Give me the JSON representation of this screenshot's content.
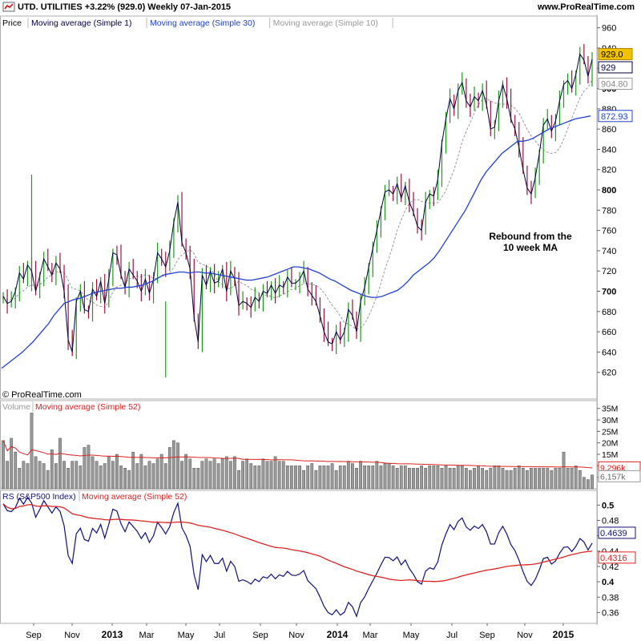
{
  "header": {
    "title_line": "UTD. UTILITIES   +3.22% (929.0)   Weekly   07-Jan-2015",
    "site": "www.ProRealTime.com"
  },
  "copyright": "© ProRealTime.com",
  "colors": {
    "price_up": "#1a9c1a",
    "price_down": "#a0103c",
    "sma1": "#000040",
    "sma30": "#2040d0",
    "sma10": "#999999",
    "volume_bar": "#9a9a9a",
    "volume_ma": "#dd2222",
    "rs_line": "#10107a",
    "rs_ma": "#dd2222",
    "badge_yellow": "#f2c200"
  },
  "chart_data": [
    {
      "type": "candlestick",
      "panel": "price",
      "legend": [
        "Price",
        "Moving average (Simple 1)",
        "Moving average (Simple 30)",
        "Moving average (Simple 10)"
      ],
      "annotation": "Rebound from the\n10 week MA",
      "ylim": [
        600,
        970
      ],
      "yticks": [
        620,
        640,
        660,
        680,
        700,
        720,
        740,
        760,
        780,
        800,
        820,
        840,
        860,
        880,
        900,
        920,
        940,
        960
      ],
      "last_values": {
        "price": "929.0",
        "sma1": "929",
        "sma10": "904.80",
        "sma30": "872.93"
      },
      "price_closes": [
        695,
        688,
        690,
        700,
        718,
        712,
        726,
        720,
        700,
        715,
        732,
        724,
        716,
        728,
        722,
        700,
        652,
        640,
        690,
        700,
        682,
        680,
        702,
        695,
        710,
        688,
        712,
        738,
        736,
        716,
        704,
        722,
        716,
        710,
        700,
        712,
        698,
        712,
        738,
        732,
        724,
        740,
        768,
        788,
        748,
        738,
        722,
        674,
        650,
        716,
        706,
        720,
        708,
        710,
        722,
        700,
        720,
        712,
        686,
        690,
        688,
        684,
        694,
        690,
        700,
        698,
        706,
        698,
        706,
        704,
        714,
        708,
        708,
        712,
        720,
        702,
        696,
        690,
        676,
        660,
        650,
        648,
        660,
        652,
        660,
        682,
        676,
        660,
        690,
        704,
        724,
        742,
        760,
        780,
        798,
        800,
        796,
        806,
        792,
        804,
        788,
        778,
        764,
        760,
        788,
        796,
        794,
        810,
        846,
        870,
        890,
        880,
        898,
        906,
        888,
        882,
        892,
        888,
        898,
        884,
        860,
        862,
        888,
        904,
        890,
        870,
        860,
        842,
        820,
        802,
        796,
        812,
        836,
        864,
        870,
        858,
        868,
        888,
        904,
        908,
        900,
        914,
        934,
        928,
        912,
        929
      ],
      "sma30_values": [
        624,
        628,
        632,
        636,
        640,
        645,
        650,
        656,
        662,
        668,
        676,
        682,
        688,
        690,
        692,
        693,
        695,
        697,
        699,
        700,
        701,
        702,
        703,
        703,
        704,
        704,
        705,
        706,
        708,
        710,
        713,
        716,
        717,
        718,
        719,
        719,
        718,
        719,
        719,
        718,
        718,
        717,
        716,
        715,
        714,
        713,
        712,
        711,
        711,
        712,
        713,
        714,
        716,
        718,
        720,
        722,
        724,
        724,
        723,
        722,
        720,
        718,
        715,
        712,
        710,
        707,
        704,
        701,
        699,
        697,
        695,
        694,
        694,
        695,
        697,
        699,
        701,
        705,
        710,
        716,
        720,
        724,
        728,
        733,
        740,
        748,
        756,
        764,
        772,
        780,
        790,
        800,
        810,
        818,
        824,
        830,
        836,
        840,
        844,
        848,
        848,
        849,
        851,
        854,
        857,
        860,
        862,
        864,
        866,
        868,
        870,
        871,
        872,
        873
      ]
    },
    {
      "type": "bar",
      "panel": "volume",
      "legend": [
        "Volume",
        "Moving average (Simple 52)"
      ],
      "yticks": [
        "5M",
        "10M",
        "15M",
        "20M",
        "25M",
        "30M",
        "35M"
      ],
      "ylim_millions": [
        0,
        37
      ],
      "last_values": {
        "volume": "6,157k",
        "volume_ma": "9,296k"
      },
      "volume_millions": [
        21,
        12,
        22,
        16,
        9,
        12,
        11,
        33,
        14,
        12,
        11,
        8,
        17,
        11,
        22,
        12,
        9,
        12,
        12,
        10,
        18,
        19,
        14,
        12,
        10,
        11,
        14,
        12,
        15,
        10,
        9,
        8,
        16,
        11,
        15,
        10,
        12,
        11,
        13,
        15,
        11,
        18,
        21,
        20,
        12,
        15,
        13,
        9,
        9,
        12,
        13,
        12,
        13,
        11,
        13,
        14,
        12,
        14,
        8,
        12,
        13,
        11,
        10,
        10,
        13,
        12,
        12,
        14,
        12,
        12,
        10,
        10,
        10,
        10,
        8,
        10,
        11,
        8,
        10,
        10,
        10,
        11,
        8,
        10,
        10,
        12,
        11,
        9,
        12,
        10,
        10,
        10,
        12,
        10,
        11,
        11,
        10,
        9,
        10,
        10,
        9,
        9,
        9,
        10,
        9,
        10,
        10,
        10,
        9,
        10,
        9,
        9,
        10,
        10,
        9,
        8,
        9,
        10,
        9,
        8,
        9,
        10,
        10,
        9,
        8,
        8,
        9,
        10,
        9,
        8,
        9,
        9,
        9,
        9,
        9,
        8,
        9,
        9,
        16,
        9,
        9,
        10,
        8,
        5,
        4,
        6
      ]
    },
    {
      "type": "line",
      "panel": "rs",
      "legend": [
        "RS (S&P500 Index)",
        "Moving average (Simple 52)"
      ],
      "yticks": [
        0.36,
        0.38,
        0.4,
        0.42,
        0.44,
        0.46,
        0.48,
        0.5
      ],
      "ylim": [
        0.35,
        0.515
      ],
      "last_values": {
        "rs": "0.4639",
        "rs_ma": "0.4316"
      }
    }
  ],
  "x_axis": {
    "labels": [
      "Sep",
      "Nov",
      "2013",
      "Mar",
      "May",
      "Jul",
      "Sep",
      "Nov",
      "2014",
      "Mar",
      "May",
      "Jul",
      "Sep",
      "Nov",
      "2015"
    ]
  }
}
